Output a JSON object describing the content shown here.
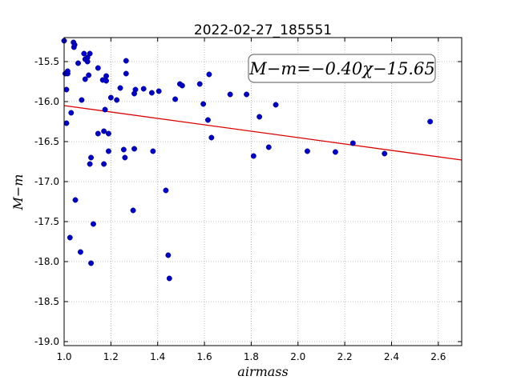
{
  "chart_data": {
    "type": "scatter",
    "title": "2022-02-27_185551",
    "xlabel": "airmass",
    "ylabel": "M−m",
    "xlim": [
      1.0,
      2.7
    ],
    "ylim": [
      -19.05,
      -15.2
    ],
    "xticks": [
      "1.0",
      "1.2",
      "1.4",
      "1.6",
      "1.8",
      "2.0",
      "2.2",
      "2.4",
      "2.6"
    ],
    "yticks": [
      "-15.5",
      "-16.0",
      "-16.5",
      "-17.0",
      "-17.5",
      "-18.0",
      "-18.5",
      "-19.0"
    ],
    "grid": true,
    "annotation": "M−m=−0.40χ−15.65",
    "colors": {
      "points": "#0000cc",
      "fit_line": "#dd0000",
      "grid": "#aaaaaa"
    },
    "fit": {
      "slope": -0.4,
      "intercept": -15.65
    },
    "points": [
      [
        1.0,
        -15.24
      ],
      [
        1.005,
        -15.65
      ],
      [
        1.01,
        -15.85
      ],
      [
        1.015,
        -15.65
      ],
      [
        1.015,
        -15.62
      ],
      [
        1.01,
        -16.27
      ],
      [
        1.025,
        -17.7
      ],
      [
        1.03,
        -16.14
      ],
      [
        1.04,
        -15.26
      ],
      [
        1.042,
        -15.32
      ],
      [
        1.045,
        -15.29
      ],
      [
        1.048,
        -17.23
      ],
      [
        1.06,
        -15.52
      ],
      [
        1.07,
        -17.88
      ],
      [
        1.075,
        -15.98
      ],
      [
        1.085,
        -15.4
      ],
      [
        1.09,
        -15.47
      ],
      [
        1.09,
        -15.72
      ],
      [
        1.1,
        -15.5
      ],
      [
        1.1,
        -15.45
      ],
      [
        1.105,
        -15.67
      ],
      [
        1.11,
        -15.4
      ],
      [
        1.11,
        -16.78
      ],
      [
        1.115,
        -16.7
      ],
      [
        1.115,
        -18.02
      ],
      [
        1.125,
        -17.53
      ],
      [
        1.145,
        -15.58
      ],
      [
        1.145,
        -16.4
      ],
      [
        1.165,
        -15.73
      ],
      [
        1.17,
        -16.37
      ],
      [
        1.17,
        -16.78
      ],
      [
        1.175,
        -16.1
      ],
      [
        1.18,
        -15.68
      ],
      [
        1.18,
        -15.74
      ],
      [
        1.19,
        -16.4
      ],
      [
        1.19,
        -16.62
      ],
      [
        1.2,
        -15.95
      ],
      [
        1.225,
        -15.98
      ],
      [
        1.24,
        -15.83
      ],
      [
        1.255,
        -16.6
      ],
      [
        1.26,
        -16.7
      ],
      [
        1.265,
        -15.49
      ],
      [
        1.265,
        -15.65
      ],
      [
        1.295,
        -17.36
      ],
      [
        1.3,
        -16.59
      ],
      [
        1.3,
        -15.9
      ],
      [
        1.305,
        -15.85
      ],
      [
        1.34,
        -15.84
      ],
      [
        1.375,
        -15.89
      ],
      [
        1.38,
        -16.62
      ],
      [
        1.405,
        -15.87
      ],
      [
        1.435,
        -17.11
      ],
      [
        1.445,
        -17.92
      ],
      [
        1.45,
        -18.21
      ],
      [
        1.475,
        -15.97
      ],
      [
        1.495,
        -15.78
      ],
      [
        1.505,
        -15.8
      ],
      [
        1.58,
        -15.78
      ],
      [
        1.595,
        -16.03
      ],
      [
        1.615,
        -16.23
      ],
      [
        1.62,
        -15.66
      ],
      [
        1.63,
        -16.45
      ],
      [
        1.71,
        -15.91
      ],
      [
        1.78,
        -15.91
      ],
      [
        1.81,
        -16.68
      ],
      [
        1.835,
        -16.19
      ],
      [
        1.875,
        -16.57
      ],
      [
        1.905,
        -16.04
      ],
      [
        2.04,
        -16.62
      ],
      [
        2.16,
        -16.63
      ],
      [
        2.235,
        -16.52
      ],
      [
        2.37,
        -16.65
      ],
      [
        2.565,
        -16.25
      ]
    ]
  }
}
